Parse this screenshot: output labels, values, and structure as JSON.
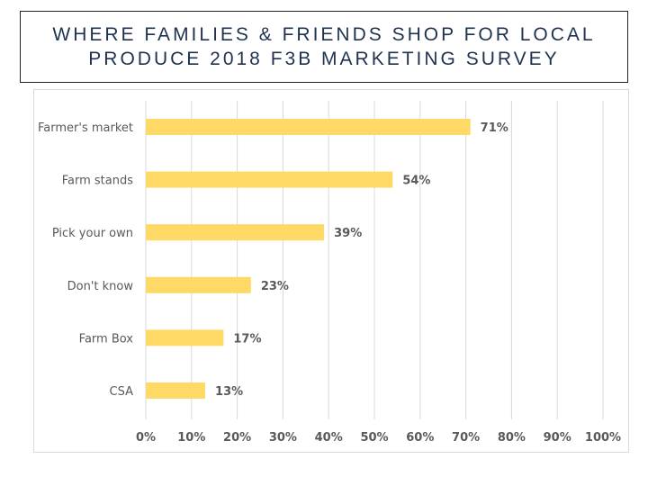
{
  "slide": {
    "title": "WHERE FAMILIES & FRIENDS SHOP FOR LOCAL PRODUCE 2018 F3B MARKETING SURVEY"
  },
  "chart_data": {
    "type": "bar",
    "orientation": "horizontal",
    "categories": [
      "Farmer's market",
      "Farm stands",
      "Pick your own",
      "Don't know",
      "Farm Box",
      "CSA"
    ],
    "values": [
      71,
      54,
      39,
      23,
      17,
      13
    ],
    "value_labels": [
      "71%",
      "54%",
      "39%",
      "23%",
      "17%",
      "13%"
    ],
    "xlim": [
      0,
      100
    ],
    "x_ticks": [
      0,
      10,
      20,
      30,
      40,
      50,
      60,
      70,
      80,
      90,
      100
    ],
    "x_tick_labels": [
      "0%",
      "10%",
      "20%",
      "30%",
      "40%",
      "50%",
      "60%",
      "70%",
      "80%",
      "90%",
      "100%"
    ],
    "grid": true,
    "bar_color": "#ffd966",
    "grid_color": "#d9d9d9"
  }
}
